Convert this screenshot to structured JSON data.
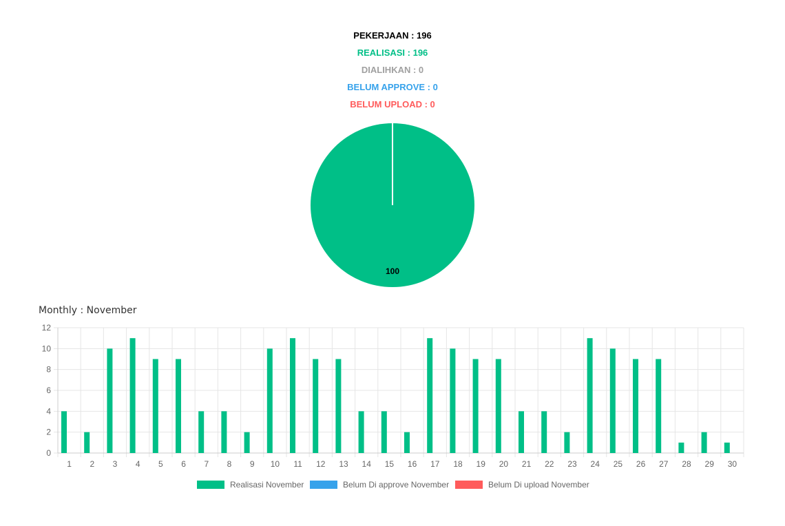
{
  "summary": {
    "pekerjaan": "PEKERJAAN : 196",
    "realisasi": "REALISASI : 196",
    "dialihkan": "DIALIHKAN : 0",
    "belum_approve": "BELUM APPROVE : 0",
    "belum_upload": "BELUM UPLOAD : 0"
  },
  "colors": {
    "black": "#000000",
    "green": "#00BF87",
    "gray": "#A0A0A0",
    "blue": "#36A2EB",
    "red": "#FF5B5B",
    "grid": "#E5E5E5",
    "tick": "#666666"
  },
  "chart_data": [
    {
      "type": "pie",
      "labels": [
        "Realisasi",
        "Dialihkan",
        "Belum Approve",
        "Belum Upload"
      ],
      "values": [
        100,
        0,
        0,
        0
      ],
      "data_labels": [
        "100"
      ]
    },
    {
      "type": "bar",
      "title": "Monthly : November",
      "categories": [
        "1",
        "2",
        "3",
        "4",
        "5",
        "6",
        "7",
        "8",
        "9",
        "10",
        "11",
        "12",
        "13",
        "14",
        "15",
        "16",
        "17",
        "18",
        "19",
        "20",
        "21",
        "22",
        "23",
        "24",
        "25",
        "26",
        "27",
        "28",
        "29",
        "30"
      ],
      "series": [
        {
          "name": "Realisasi November",
          "values": [
            4,
            2,
            10,
            11,
            9,
            9,
            4,
            4,
            2,
            10,
            11,
            9,
            9,
            4,
            4,
            2,
            11,
            10,
            9,
            9,
            4,
            4,
            2,
            11,
            10,
            9,
            9,
            1,
            2,
            1
          ]
        },
        {
          "name": "Belum Di approve November",
          "values": [
            0,
            0,
            0,
            0,
            0,
            0,
            0,
            0,
            0,
            0,
            0,
            0,
            0,
            0,
            0,
            0,
            0,
            0,
            0,
            0,
            0,
            0,
            0,
            0,
            0,
            0,
            0,
            0,
            0,
            0
          ]
        },
        {
          "name": "Belum Di upload November",
          "values": [
            0,
            0,
            0,
            0,
            0,
            0,
            0,
            0,
            0,
            0,
            0,
            0,
            0,
            0,
            0,
            0,
            0,
            0,
            0,
            0,
            0,
            0,
            0,
            0,
            0,
            0,
            0,
            0,
            0,
            0
          ]
        }
      ],
      "ylim": [
        0,
        12
      ],
      "yticks": [
        "0",
        "2",
        "4",
        "6",
        "8",
        "10",
        "12"
      ],
      "grid": true,
      "legend": "bottom"
    }
  ]
}
